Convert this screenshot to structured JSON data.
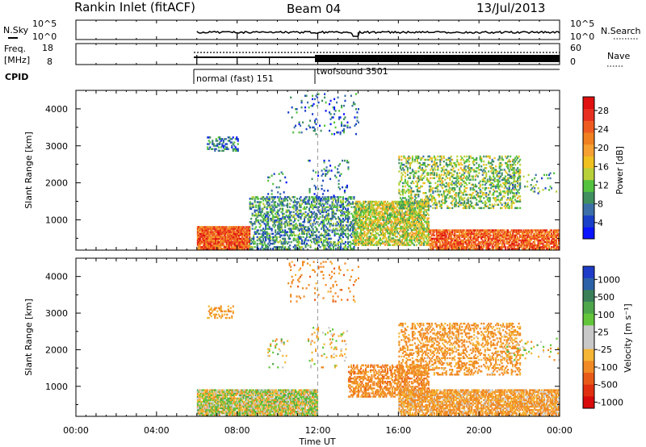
{
  "header": {
    "site": "Rankin Inlet (fitACF)",
    "beam": "Beam 04",
    "date": "13/Jul/2013"
  },
  "top_panels": {
    "nsky_label": "N.Sky",
    "nsearch_label": "N.Search",
    "nsky_ticks": [
      "10^5",
      "10^0"
    ],
    "nsearch_ticks": [
      "10^5",
      "10^0"
    ],
    "freq_label_line1": "Freq.",
    "freq_label_line2": "[MHz]",
    "freq_ticks": [
      "18",
      "8"
    ],
    "nave_label": "Nave",
    "nave_ticks": [
      "60",
      "0"
    ],
    "cpid_label": "CPID",
    "modes": [
      {
        "name": "normal (fast) 151",
        "start_hour": 6,
        "end_hour": 12
      },
      {
        "name": "twofsound 3501",
        "start_hour": 12,
        "end_hour": 24
      }
    ]
  },
  "x_axis": {
    "label": "Time UT",
    "ticks": [
      "00:00",
      "04:00",
      "08:00",
      "12:00",
      "16:00",
      "20:00",
      "00:00"
    ],
    "range_hours": [
      0,
      24
    ]
  },
  "y_axis": {
    "label": "Slant Range [km]",
    "ticks": [
      "1000",
      "2000",
      "3000",
      "4000"
    ],
    "range_km": [
      180,
      4500
    ]
  },
  "colorbars": {
    "power": {
      "label": "Power [dB]",
      "ticks": [
        "4",
        "8",
        "12",
        "16",
        "20",
        "24",
        "28"
      ],
      "colors": [
        "#0a14ff",
        "#1a40c8",
        "#3c6fa8",
        "#3f8f5f",
        "#55c23f",
        "#b8d03a",
        "#f0c020",
        "#f5a030",
        "#f08020",
        "#ee5a20",
        "#e83020",
        "#e01010"
      ]
    },
    "velocity": {
      "label": "Velocity [m s⁻¹]",
      "ticks": [
        "1000",
        "500",
        "100",
        "25",
        "-25",
        "-100",
        "-500",
        "-1000"
      ],
      "colors": [
        "#1e3cc8",
        "#2c62a8",
        "#3a7f5a",
        "#4ea64a",
        "#63c63a",
        "#c8c8c8",
        "#c8c8c8",
        "#f5b535",
        "#f08a25",
        "#e85a18",
        "#e03010",
        "#d80a0a"
      ]
    }
  },
  "chart_data": [
    {
      "type": "heatmap",
      "name": "power",
      "xlabel": "Time UT",
      "ylabel": "Slant Range [km]",
      "xlim": [
        0,
        24
      ],
      "ylim": [
        180,
        4500
      ],
      "colorbar_label": "Power [dB]",
      "colorbar_range": [
        0,
        30
      ],
      "regions": [
        {
          "t": [
            6.0,
            8.6
          ],
          "r": [
            200,
            800
          ],
          "power": 24,
          "desc": "dense strong echoes"
        },
        {
          "t": [
            8.6,
            13.8
          ],
          "r": [
            200,
            1600
          ],
          "power": 8,
          "desc": "scattered weak echoes"
        },
        {
          "t": [
            13.8,
            17.5
          ],
          "r": [
            300,
            1500
          ],
          "power": 14,
          "desc": "moderate band"
        },
        {
          "t": [
            17.5,
            24.0
          ],
          "r": [
            200,
            700
          ],
          "power": 24,
          "desc": "strong near-range echoes"
        },
        {
          "t": [
            16.0,
            22.0
          ],
          "r": [
            1300,
            2700
          ],
          "power": 12,
          "desc": "rising oblique band"
        },
        {
          "t": [
            6.5,
            8.0
          ],
          "r": [
            2850,
            3250
          ],
          "power": 6,
          "desc": "far-range patch"
        }
      ]
    },
    {
      "type": "heatmap",
      "name": "velocity",
      "xlabel": "Time UT",
      "ylabel": "Slant Range [km]",
      "xlim": [
        0,
        24
      ],
      "ylim": [
        180,
        4500
      ],
      "colorbar_label": "Velocity [m s⁻¹]",
      "colorbar_range": [
        -1000,
        1000
      ],
      "regions": [
        {
          "t": [
            6.0,
            12.0
          ],
          "r": [
            200,
            900
          ],
          "velocity": 0,
          "desc": "ground scatter, near zero"
        },
        {
          "t": [
            13.5,
            17.5
          ],
          "r": [
            700,
            1600
          ],
          "velocity": -200,
          "desc": "negative velocities"
        },
        {
          "t": [
            16.0,
            22.0
          ],
          "r": [
            1300,
            2700
          ],
          "velocity": -150,
          "desc": "rising oblique band"
        },
        {
          "t": [
            16.0,
            24.0
          ],
          "r": [
            200,
            900
          ],
          "velocity": -120,
          "desc": "negative near range"
        },
        {
          "t": [
            6.5,
            7.8
          ],
          "r": [
            2850,
            3200
          ],
          "velocity": -150,
          "desc": "far-range patch"
        }
      ]
    }
  ]
}
